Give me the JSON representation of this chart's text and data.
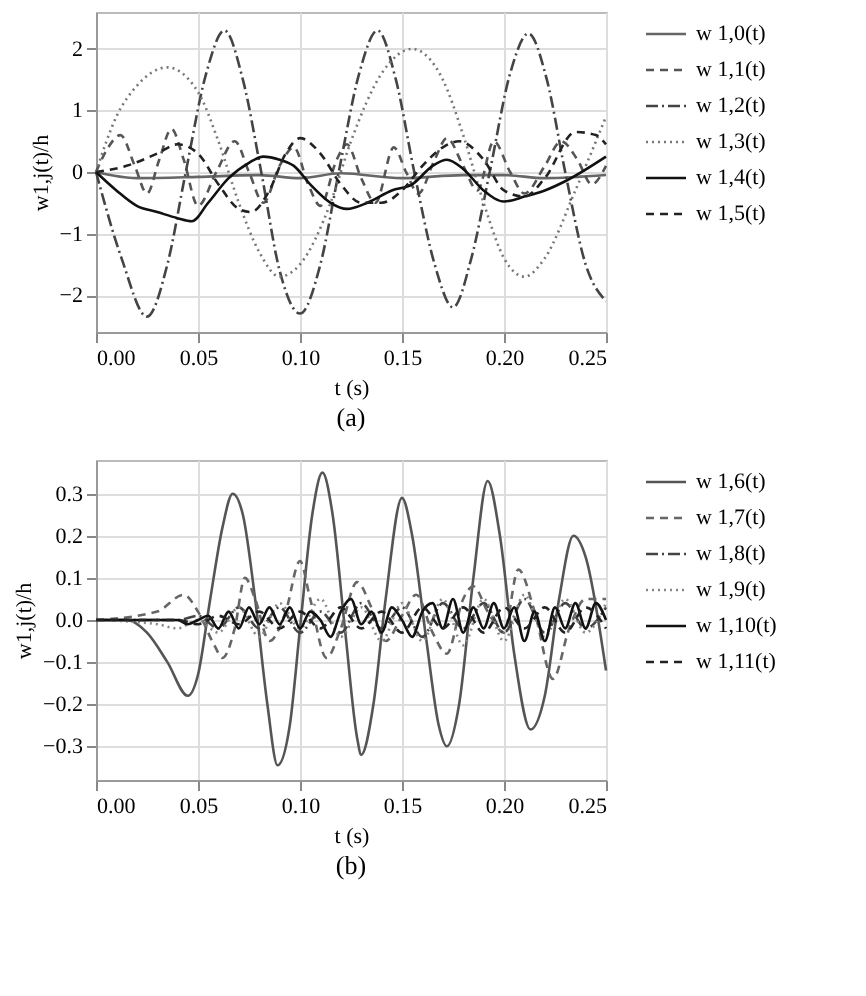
{
  "chart_data": [
    {
      "type": "line",
      "xlabel": "t (s)",
      "ylabel": "w1,j(t)/h",
      "annotations": [
        "(a)"
      ],
      "legend": "right",
      "grid": true,
      "xlim": [
        0,
        0.25
      ],
      "ylim": [
        -2.6,
        2.6
      ],
      "xticks": [
        {
          "value": 0,
          "label": "0.00"
        },
        {
          "value": 0.05,
          "label": "0.05"
        },
        {
          "value": 0.1,
          "label": "0.10"
        },
        {
          "value": 0.15,
          "label": "0.15"
        },
        {
          "value": 0.2,
          "label": "0.20"
        },
        {
          "value": 0.25,
          "label": "0.25"
        }
      ],
      "yticks": [
        {
          "value": -2,
          "label": "−2"
        },
        {
          "value": -1,
          "label": "−1"
        },
        0,
        1,
        2
      ],
      "series": [
        {
          "name": "w 1,0(t)",
          "color": "#666666",
          "line_style": "solid",
          "x": [
            0,
            0.02,
            0.05,
            0.08,
            0.1,
            0.12,
            0.15,
            0.18,
            0.2,
            0.22,
            0.25
          ],
          "values": [
            0,
            -0.1,
            -0.08,
            -0.05,
            -0.1,
            -0.02,
            -0.1,
            -0.05,
            -0.05,
            -0.1,
            -0.05
          ]
        },
        {
          "name": "w 1,1(t)",
          "color": "#555555",
          "line_style": "dashed",
          "x": [
            0,
            0.006,
            0.012,
            0.019,
            0.025,
            0.031,
            0.037,
            0.043,
            0.05,
            0.059,
            0.068,
            0.075,
            0.082,
            0.09,
            0.097,
            0.104,
            0.11,
            0.118,
            0.123,
            0.13,
            0.137,
            0.146,
            0.152,
            0.158,
            0.166,
            0.172,
            0.18,
            0.187,
            0.195,
            0.203,
            0.21,
            0.22,
            0.228,
            0.236,
            0.243,
            0.25
          ],
          "values": [
            0,
            0.4,
            0.6,
            0.1,
            -0.35,
            0.2,
            0.7,
            0.2,
            -0.55,
            0,
            0.5,
            0,
            -0.5,
            0.1,
            0.4,
            -0.2,
            -0.55,
            0.2,
            0.45,
            -0.1,
            -0.5,
            0.4,
            0,
            -0.35,
            0.2,
            0.55,
            0.1,
            -0.3,
            0.5,
            0,
            -0.35,
            0.1,
            0.5,
            0.2,
            -0.2,
            0.1
          ]
        },
        {
          "name": "w 1,2(t)",
          "color": "#444444",
          "line_style": "dashdot",
          "x": [
            0,
            0.0125,
            0.025,
            0.035,
            0.044,
            0.054,
            0.063,
            0.072,
            0.081,
            0.09,
            0.1,
            0.11,
            0.119,
            0.129,
            0.138,
            0.147,
            0.156,
            0.166,
            0.175,
            0.184,
            0.193,
            0.203,
            0.212,
            0.221,
            0.23,
            0.24,
            0.25
          ],
          "values": [
            0,
            -1.4,
            -2.35,
            -1.5,
            0,
            1.6,
            2.3,
            1.5,
            0,
            -1.6,
            -2.3,
            -1.5,
            0,
            1.6,
            2.3,
            1.5,
            0,
            -1.5,
            -2.2,
            -1.4,
            0,
            1.6,
            2.25,
            1.5,
            0,
            -1.5,
            -2.1
          ]
        },
        {
          "name": "w 1,3(t)",
          "color": "#777777",
          "line_style": "dotted",
          "x": [
            0,
            0.01,
            0.02,
            0.035,
            0.05,
            0.06,
            0.07,
            0.08,
            0.09,
            0.1,
            0.115,
            0.125,
            0.14,
            0.155,
            0.17,
            0.18,
            0.19,
            0.2,
            0.21,
            0.22,
            0.235,
            0.25
          ],
          "values": [
            0,
            0.9,
            1.4,
            1.7,
            1.3,
            0.5,
            -0.5,
            -1.3,
            -1.7,
            -1.5,
            -0.5,
            0.5,
            1.6,
            2.0,
            1.5,
            0.6,
            -0.5,
            -1.4,
            -1.7,
            -1.4,
            -0.3,
            0.9
          ]
        },
        {
          "name": "w 1,4(t)",
          "color": "#111111",
          "line_style": "solid",
          "x": [
            0,
            0.01,
            0.02,
            0.03,
            0.04,
            0.047,
            0.055,
            0.065,
            0.075,
            0.082,
            0.09,
            0.097,
            0.105,
            0.115,
            0.123,
            0.133,
            0.145,
            0.155,
            0.165,
            0.172,
            0.18,
            0.19,
            0.2,
            0.21,
            0.22,
            0.23,
            0.25
          ],
          "values": [
            0,
            -0.3,
            -0.55,
            -0.65,
            -0.75,
            -0.8,
            -0.5,
            -0.1,
            0.15,
            0.25,
            0.2,
            0.1,
            -0.2,
            -0.5,
            -0.6,
            -0.5,
            -0.3,
            -0.2,
            0.1,
            0.2,
            0.05,
            -0.3,
            -0.48,
            -0.4,
            -0.3,
            -0.15,
            0.25
          ]
        },
        {
          "name": "w 1,5(t)",
          "color": "#222222",
          "line_style": "dashed",
          "x": [
            0,
            0.015,
            0.03,
            0.04,
            0.05,
            0.06,
            0.07,
            0.076,
            0.085,
            0.093,
            0.1,
            0.11,
            0.12,
            0.13,
            0.14,
            0.15,
            0.16,
            0.17,
            0.178,
            0.19,
            0.2,
            0.21,
            0.22,
            0.235,
            0.245,
            0.25
          ],
          "values": [
            0,
            0.1,
            0.3,
            0.45,
            0.3,
            -0.2,
            -0.6,
            -0.65,
            -0.3,
            0.3,
            0.55,
            0.3,
            -0.2,
            -0.5,
            -0.5,
            -0.3,
            0.1,
            0.4,
            0.5,
            0.2,
            -0.3,
            -0.4,
            -0.1,
            0.65,
            0.6,
            0.45
          ]
        }
      ]
    },
    {
      "type": "line",
      "xlabel": "t (s)",
      "ylabel": "w1,j(t)/h",
      "annotations": [
        "(b)"
      ],
      "legend": "right",
      "grid": true,
      "xlim": [
        0,
        0.25
      ],
      "ylim": [
        -0.38,
        0.38
      ],
      "xticks": [
        {
          "value": 0,
          "label": "0.00"
        },
        {
          "value": 0.05,
          "label": "0.05"
        },
        {
          "value": 0.1,
          "label": "0.10"
        },
        {
          "value": 0.15,
          "label": "0.15"
        },
        {
          "value": 0.2,
          "label": "0.20"
        },
        {
          "value": 0.25,
          "label": "0.25"
        }
      ],
      "yticks": [
        {
          "value": -0.3,
          "label": "−0.3"
        },
        {
          "value": -0.2,
          "label": "−0.2"
        },
        {
          "value": -0.1,
          "label": "−0.1"
        },
        {
          "value": 0,
          "label": "0.0"
        },
        0.1,
        0.2,
        0.3
      ],
      "series": [
        {
          "name": "w 1,6(t)",
          "color": "#555555",
          "line_style": "solid",
          "x": [
            0,
            0.015,
            0.025,
            0.035,
            0.045,
            0.05,
            0.056,
            0.062,
            0.067,
            0.072,
            0.078,
            0.084,
            0.089,
            0.095,
            0.1,
            0.106,
            0.111,
            0.116,
            0.122,
            0.128,
            0.13,
            0.136,
            0.142,
            0.15,
            0.155,
            0.162,
            0.168,
            0.172,
            0.178,
            0.185,
            0.192,
            0.198,
            0.205,
            0.213,
            0.22,
            0.227,
            0.234,
            0.24,
            0.25
          ],
          "values": [
            0,
            0,
            -0.03,
            -0.1,
            -0.18,
            -0.13,
            0.05,
            0.22,
            0.3,
            0.25,
            0.05,
            -0.2,
            -0.345,
            -0.25,
            -0.02,
            0.25,
            0.35,
            0.25,
            -0.02,
            -0.28,
            -0.32,
            -0.2,
            0.05,
            0.29,
            0.2,
            -0.05,
            -0.25,
            -0.3,
            -0.2,
            0.1,
            0.33,
            0.2,
            -0.08,
            -0.26,
            -0.18,
            0.05,
            0.2,
            0.15,
            -0.12
          ]
        },
        {
          "name": "w 1,7(t)",
          "color": "#666666",
          "line_style": "dashed",
          "x": [
            0,
            0.03,
            0.043,
            0.05,
            0.058,
            0.062,
            0.068,
            0.073,
            0.078,
            0.085,
            0.093,
            0.1,
            0.105,
            0.113,
            0.12,
            0.128,
            0.135,
            0.142,
            0.15,
            0.157,
            0.165,
            0.172,
            0.18,
            0.185,
            0.192,
            0.2,
            0.207,
            0.215,
            0.224,
            0.232,
            0.24,
            0.25
          ],
          "values": [
            0,
            0.02,
            0.06,
            0.02,
            -0.06,
            -0.09,
            -0.02,
            0.1,
            0.05,
            -0.05,
            0.02,
            0.14,
            0.05,
            -0.09,
            -0.02,
            0.09,
            0.03,
            -0.05,
            0.01,
            0.06,
            -0.03,
            -0.08,
            0.05,
            0.08,
            0.02,
            -0.03,
            0.12,
            0.02,
            -0.14,
            -0.02,
            0.05,
            0.05
          ]
        },
        {
          "name": "w 1,8(t)",
          "color": "#444444",
          "line_style": "dashdot",
          "x": [
            0,
            0.04,
            0.05,
            0.06,
            0.07,
            0.08,
            0.09,
            0.1,
            0.11,
            0.12,
            0.13,
            0.14,
            0.15,
            0.16,
            0.17,
            0.18,
            0.19,
            0.2,
            0.21,
            0.22,
            0.23,
            0.24,
            0.25
          ],
          "values": [
            0,
            0,
            0.01,
            -0.02,
            0.03,
            -0.02,
            0.03,
            -0.03,
            0.02,
            -0.03,
            0.04,
            -0.02,
            0.03,
            -0.04,
            0.04,
            -0.02,
            0.04,
            -0.03,
            0.05,
            -0.03,
            0.04,
            -0.02,
            0.03
          ]
        },
        {
          "name": "w 1,9(t)",
          "color": "#888888",
          "line_style": "dotted",
          "x": [
            0,
            0.03,
            0.04,
            0.05,
            0.06,
            0.07,
            0.08,
            0.09,
            0.1,
            0.11,
            0.12,
            0.13,
            0.14,
            0.15,
            0.16,
            0.17,
            0.18,
            0.19,
            0.2,
            0.21,
            0.22,
            0.23,
            0.24,
            0.25
          ],
          "values": [
            0,
            -0.01,
            -0.02,
            0.0,
            -0.03,
            0.03,
            -0.04,
            0.04,
            -0.02,
            0.05,
            -0.04,
            0.03,
            -0.05,
            0.04,
            -0.05,
            0.05,
            -0.06,
            0.05,
            -0.05,
            0.06,
            -0.04,
            0.05,
            -0.03,
            0.04
          ]
        },
        {
          "name": "w 1,10(t)",
          "color": "#111111",
          "line_style": "solid",
          "x": [
            0,
            0.04,
            0.045,
            0.05,
            0.055,
            0.06,
            0.065,
            0.07,
            0.075,
            0.08,
            0.085,
            0.09,
            0.095,
            0.1,
            0.105,
            0.11,
            0.115,
            0.12,
            0.125,
            0.13,
            0.135,
            0.14,
            0.145,
            0.15,
            0.155,
            0.16,
            0.165,
            0.17,
            0.175,
            0.18,
            0.185,
            0.19,
            0.195,
            0.2,
            0.205,
            0.21,
            0.215,
            0.22,
            0.225,
            0.23,
            0.235,
            0.24,
            0.245,
            0.25
          ],
          "values": [
            0,
            0,
            -0.01,
            0,
            0.01,
            -0.02,
            0.02,
            -0.02,
            0.03,
            -0.01,
            0.03,
            -0.01,
            0.03,
            -0.02,
            0.02,
            0,
            -0.04,
            0.02,
            0.05,
            -0.01,
            0.02,
            -0.03,
            0.03,
            0,
            -0.04,
            0.02,
            0.04,
            -0.02,
            0.05,
            -0.03,
            0.03,
            -0.02,
            0.04,
            -0.02,
            0.03,
            -0.05,
            0.02,
            -0.05,
            0.03,
            -0.02,
            0.04,
            -0.02,
            0.04,
            0
          ]
        },
        {
          "name": "w 1,11(t)",
          "color": "#222222",
          "line_style": "dashed",
          "x": [
            0,
            0.04,
            0.05,
            0.06,
            0.07,
            0.08,
            0.09,
            0.1,
            0.11,
            0.12,
            0.13,
            0.14,
            0.15,
            0.16,
            0.17,
            0.18,
            0.19,
            0.2,
            0.21,
            0.22,
            0.23,
            0.24,
            0.25
          ],
          "values": [
            0,
            0,
            -0.01,
            0.01,
            -0.01,
            0.02,
            -0.02,
            0.02,
            -0.02,
            0.03,
            -0.02,
            0.02,
            -0.03,
            0.03,
            -0.02,
            0.03,
            -0.03,
            0.03,
            -0.02,
            0.03,
            -0.03,
            0.03,
            -0.02
          ]
        }
      ]
    }
  ]
}
